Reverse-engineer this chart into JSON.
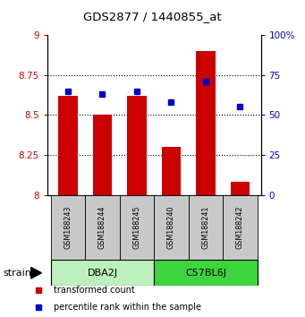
{
  "title": "GDS2877 / 1440855_at",
  "samples": [
    "GSM188243",
    "GSM188244",
    "GSM188245",
    "GSM188240",
    "GSM188241",
    "GSM188242"
  ],
  "transformed_counts": [
    8.62,
    8.5,
    8.62,
    8.3,
    8.9,
    8.08
  ],
  "percentile_ranks": [
    65,
    63,
    65,
    58,
    71,
    55
  ],
  "groups": [
    {
      "name": "DBA2J",
      "indices": [
        0,
        1,
        2
      ],
      "color": "#bcf0bc"
    },
    {
      "name": "C57BL6J",
      "indices": [
        3,
        4,
        5
      ],
      "color": "#3dd43d"
    }
  ],
  "ylim_left": [
    8.0,
    9.0
  ],
  "ylim_right": [
    0,
    100
  ],
  "yticks_left": [
    8.0,
    8.25,
    8.5,
    8.75,
    9.0
  ],
  "yticks_right": [
    0,
    25,
    50,
    75,
    100
  ],
  "ytick_labels_left": [
    "8",
    "8.25",
    "8.5",
    "8.75",
    "9"
  ],
  "ytick_labels_right": [
    "0",
    "25",
    "50",
    "75",
    "100%"
  ],
  "bar_color": "#cc0000",
  "dot_color": "#0000cc",
  "bar_bottom": 8.0,
  "bar_width": 0.55,
  "legend_red_label": "transformed count",
  "legend_blue_label": "percentile rank within the sample",
  "strain_label": "strain",
  "background_color": "#ffffff",
  "sample_box_color": "#c8c8c8",
  "title_fontsize": 10,
  "grid_ticks": [
    8.25,
    8.5,
    8.75
  ]
}
